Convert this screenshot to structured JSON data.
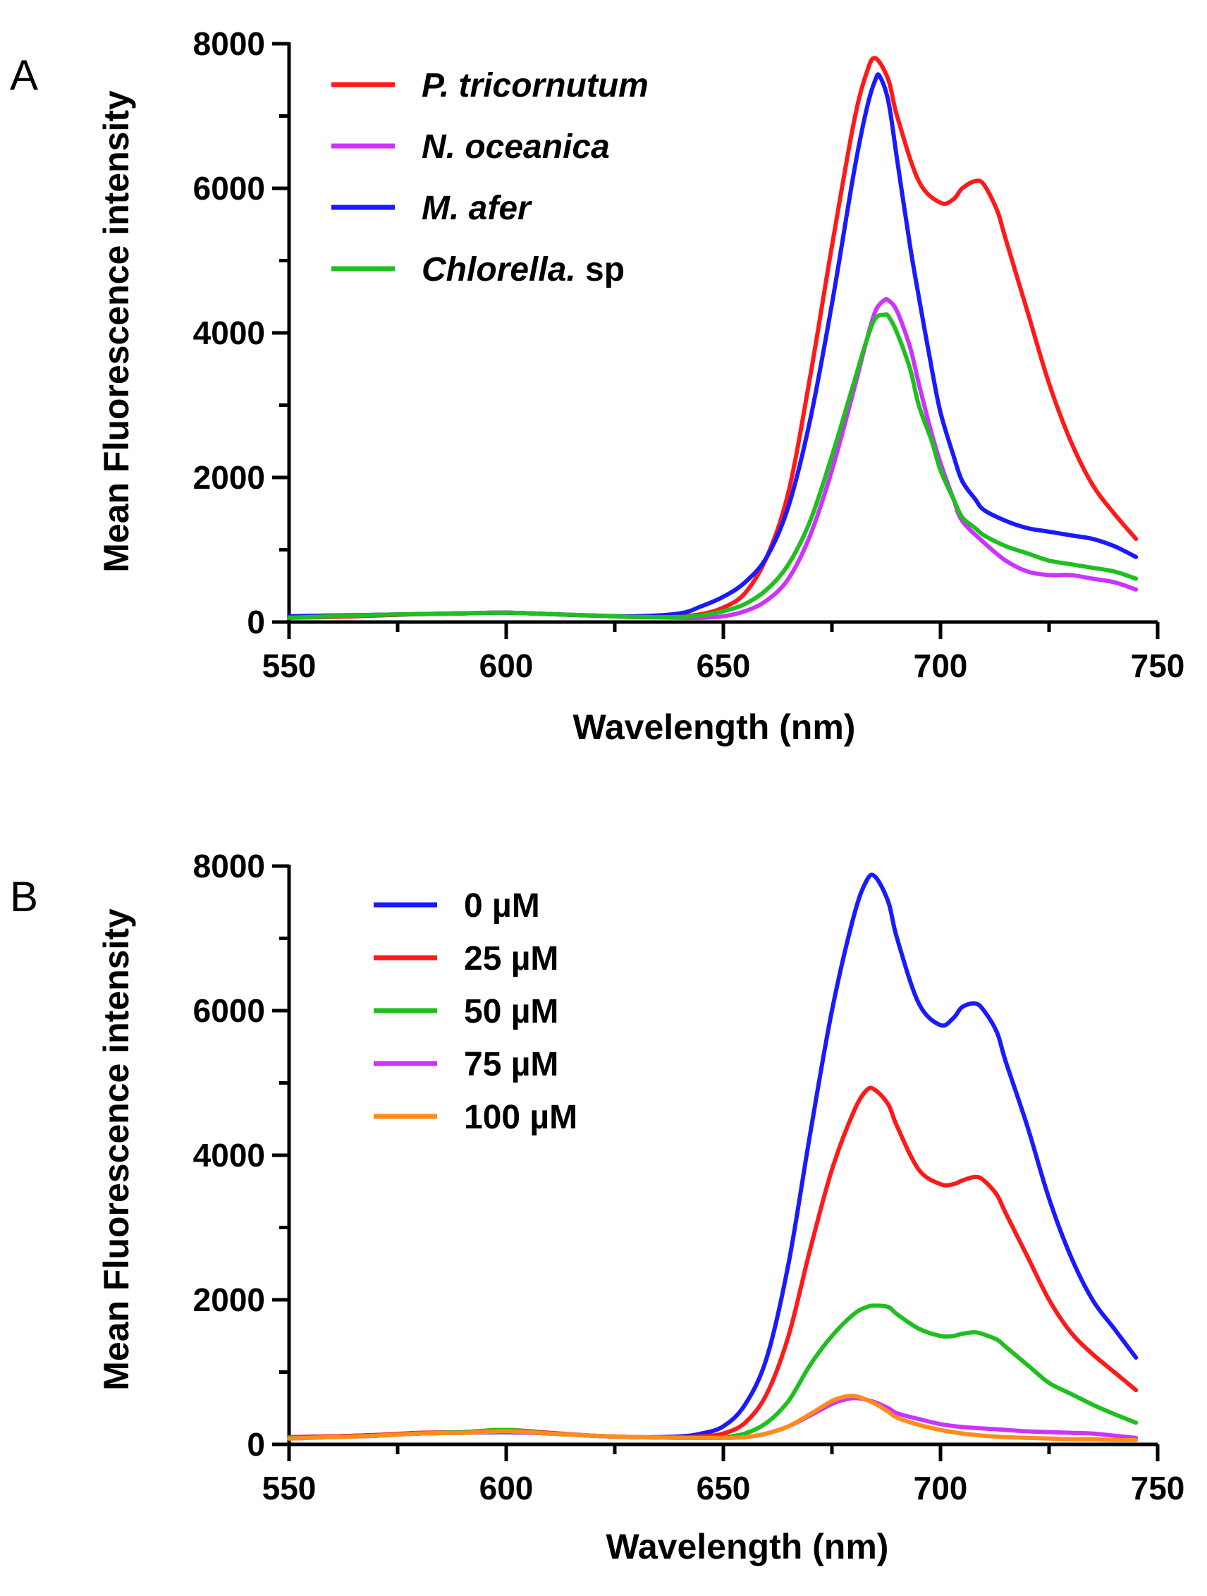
{
  "chart_data": [
    {
      "type": "line",
      "panel": "A",
      "title": "",
      "xlabel": "Wavelength (nm)",
      "ylabel": "Mean Fluorescence intensity",
      "xlim": [
        550,
        750
      ],
      "ylim": [
        0,
        8000
      ],
      "xticks": [
        550,
        600,
        650,
        700,
        750
      ],
      "yticks": [
        0,
        2000,
        4000,
        6000,
        8000
      ],
      "legend_position": "top-left",
      "series": [
        {
          "name": "P. tricornutum",
          "name_italic": "P. tricornutum",
          "name_suffix": "",
          "color": "#ff1a1a",
          "x": [
            550,
            560,
            570,
            580,
            590,
            600,
            610,
            620,
            630,
            640,
            645,
            650,
            655,
            660,
            665,
            670,
            675,
            680,
            683,
            685,
            688,
            690,
            695,
            700,
            703,
            705,
            708,
            710,
            713,
            715,
            720,
            725,
            730,
            735,
            740,
            745
          ],
          "y": [
            60,
            70,
            90,
            110,
            120,
            130,
            110,
            90,
            70,
            80,
            110,
            200,
            400,
            900,
            1800,
            3400,
            5200,
            6900,
            7600,
            7800,
            7500,
            7000,
            6100,
            5800,
            5850,
            6000,
            6100,
            6050,
            5700,
            5300,
            4300,
            3300,
            2500,
            1900,
            1500,
            1150
          ]
        },
        {
          "name": "N. oceanica",
          "name_italic": "N. oceanica",
          "name_suffix": "",
          "color": "#cc33ff",
          "x": [
            550,
            560,
            570,
            580,
            590,
            600,
            610,
            620,
            630,
            640,
            645,
            650,
            655,
            660,
            665,
            670,
            675,
            680,
            683,
            685,
            687,
            688,
            690,
            693,
            695,
            698,
            700,
            703,
            705,
            710,
            715,
            720,
            725,
            730,
            735,
            740,
            745
          ],
          "y": [
            60,
            80,
            100,
            110,
            120,
            130,
            110,
            90,
            70,
            60,
            60,
            80,
            150,
            300,
            600,
            1200,
            2100,
            3200,
            3900,
            4300,
            4450,
            4450,
            4300,
            3800,
            3300,
            2600,
            2200,
            1700,
            1400,
            1100,
            850,
            700,
            650,
            650,
            600,
            550,
            450
          ]
        },
        {
          "name": "M. afer",
          "name_italic": "M. afer",
          "name_suffix": "",
          "color": "#1a1aff",
          "x": [
            550,
            560,
            570,
            580,
            590,
            600,
            610,
            620,
            630,
            640,
            645,
            650,
            655,
            660,
            665,
            670,
            675,
            680,
            683,
            685,
            686,
            688,
            690,
            693,
            695,
            698,
            700,
            703,
            705,
            708,
            710,
            715,
            720,
            725,
            730,
            735,
            740,
            745
          ],
          "y": [
            80,
            90,
            100,
            110,
            120,
            130,
            110,
            90,
            80,
            120,
            220,
            350,
            550,
            900,
            1600,
            2800,
            4400,
            6200,
            7100,
            7500,
            7550,
            7200,
            6400,
            5200,
            4500,
            3500,
            2900,
            2300,
            1950,
            1700,
            1550,
            1400,
            1300,
            1250,
            1200,
            1150,
            1050,
            900
          ]
        },
        {
          "name": "Chlorella. sp",
          "name_italic": "Chlorella.",
          "name_suffix": " sp",
          "color": "#1fbf1f",
          "x": [
            550,
            560,
            570,
            580,
            590,
            600,
            610,
            620,
            630,
            640,
            645,
            650,
            655,
            660,
            665,
            670,
            675,
            680,
            683,
            685,
            687,
            688,
            690,
            693,
            695,
            698,
            700,
            703,
            705,
            708,
            710,
            715,
            720,
            725,
            730,
            735,
            740,
            745
          ],
          "y": [
            60,
            80,
            100,
            110,
            120,
            130,
            110,
            90,
            70,
            70,
            90,
            150,
            250,
            450,
            800,
            1400,
            2300,
            3300,
            3900,
            4200,
            4250,
            4230,
            4000,
            3500,
            3000,
            2500,
            2100,
            1700,
            1450,
            1300,
            1200,
            1050,
            950,
            850,
            800,
            750,
            700,
            600
          ]
        }
      ]
    },
    {
      "type": "line",
      "panel": "B",
      "title": "",
      "xlabel": "Wavelength (nm)",
      "ylabel": "Mean Fluorescence intensity",
      "xlim": [
        550,
        750
      ],
      "ylim": [
        0,
        8000
      ],
      "xticks": [
        550,
        600,
        650,
        700,
        750
      ],
      "yticks": [
        0,
        2000,
        4000,
        6000,
        8000
      ],
      "legend_position": "top-left",
      "series": [
        {
          "name": "0 µM",
          "name_italic": "",
          "name_suffix": "0 µM",
          "color": "#1a1aff",
          "x": [
            550,
            560,
            570,
            580,
            590,
            600,
            610,
            620,
            630,
            640,
            645,
            650,
            655,
            660,
            665,
            670,
            675,
            680,
            683,
            685,
            688,
            690,
            695,
            700,
            703,
            705,
            708,
            710,
            713,
            715,
            720,
            725,
            730,
            735,
            740,
            745
          ],
          "y": [
            100,
            110,
            130,
            150,
            160,
            170,
            150,
            120,
            100,
            110,
            150,
            250,
            550,
            1200,
            2500,
            4300,
            6000,
            7300,
            7800,
            7850,
            7500,
            7000,
            6100,
            5800,
            5900,
            6050,
            6100,
            6000,
            5700,
            5300,
            4400,
            3400,
            2600,
            2000,
            1600,
            1200
          ]
        },
        {
          "name": "25 µM",
          "name_italic": "",
          "name_suffix": "25 µM",
          "color": "#ff1a1a",
          "x": [
            550,
            560,
            570,
            580,
            590,
            600,
            610,
            620,
            630,
            640,
            645,
            650,
            655,
            660,
            665,
            670,
            675,
            680,
            683,
            685,
            688,
            690,
            695,
            700,
            703,
            705,
            708,
            710,
            713,
            715,
            720,
            725,
            730,
            735,
            740,
            745
          ],
          "y": [
            100,
            110,
            130,
            160,
            170,
            200,
            160,
            120,
            100,
            100,
            110,
            150,
            300,
            700,
            1500,
            2700,
            3800,
            4600,
            4900,
            4900,
            4700,
            4400,
            3800,
            3600,
            3600,
            3650,
            3700,
            3650,
            3450,
            3200,
            2600,
            2000,
            1550,
            1250,
            1000,
            750
          ]
        },
        {
          "name": "50 µM",
          "name_italic": "",
          "name_suffix": "50 µM",
          "color": "#1fbf1f",
          "x": [
            550,
            560,
            570,
            580,
            590,
            600,
            610,
            620,
            630,
            640,
            645,
            650,
            655,
            660,
            665,
            670,
            675,
            680,
            683,
            685,
            688,
            690,
            695,
            700,
            703,
            705,
            708,
            710,
            713,
            715,
            720,
            725,
            730,
            735,
            740,
            745
          ],
          "y": [
            90,
            100,
            120,
            150,
            170,
            200,
            150,
            120,
            100,
            90,
            90,
            100,
            150,
            300,
            600,
            1100,
            1500,
            1800,
            1900,
            1920,
            1900,
            1800,
            1600,
            1500,
            1500,
            1530,
            1550,
            1520,
            1450,
            1350,
            1100,
            850,
            700,
            550,
            420,
            300
          ]
        },
        {
          "name": "75 µM",
          "name_italic": "",
          "name_suffix": "75 µM",
          "color": "#cc33ff",
          "x": [
            550,
            560,
            570,
            580,
            590,
            600,
            610,
            620,
            630,
            640,
            650,
            655,
            660,
            665,
            670,
            675,
            678,
            680,
            682,
            685,
            688,
            690,
            695,
            700,
            705,
            710,
            715,
            720,
            725,
            730,
            735,
            740,
            745
          ],
          "y": [
            80,
            100,
            120,
            150,
            160,
            180,
            150,
            120,
            100,
            90,
            90,
            100,
            150,
            250,
            400,
            560,
            620,
            640,
            630,
            580,
            500,
            430,
            350,
            280,
            240,
            220,
            200,
            180,
            170,
            160,
            150,
            120,
            90
          ]
        },
        {
          "name": "100 µM",
          "name_italic": "",
          "name_suffix": "100 µM",
          "color": "#ff8c1a",
          "x": [
            550,
            560,
            570,
            580,
            590,
            600,
            610,
            620,
            630,
            640,
            650,
            655,
            660,
            665,
            670,
            675,
            678,
            680,
            682,
            685,
            688,
            690,
            695,
            700,
            705,
            710,
            715,
            720,
            725,
            730,
            735,
            740,
            745
          ],
          "y": [
            80,
            100,
            120,
            150,
            160,
            180,
            150,
            120,
            100,
            90,
            90,
            100,
            150,
            250,
            420,
            600,
            660,
            670,
            640,
            560,
            450,
            370,
            270,
            200,
            150,
            120,
            100,
            90,
            80,
            70,
            70,
            60,
            60
          ]
        }
      ]
    }
  ]
}
